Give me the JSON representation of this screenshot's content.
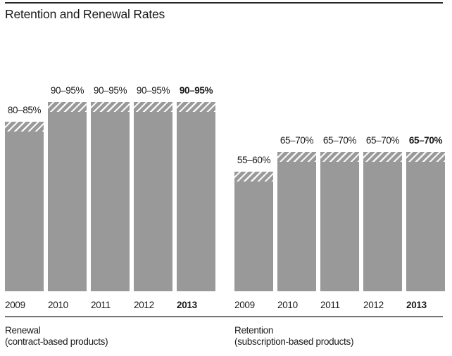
{
  "chart_data": {
    "type": "bar",
    "title": "Retention and Renewal Rates",
    "unit": "%",
    "ylim": [
      0,
      100
    ],
    "grid": false,
    "legend": "none",
    "colors": {
      "bar": "#999999",
      "hatch_stripe": "#f7f7f7",
      "text": "#1a1a1a",
      "top_rule": "#262626",
      "bottom_rule": "#757575"
    },
    "groups": [
      {
        "name": "Renewal",
        "subtitle": "(contract-based products)",
        "categories": [
          "2009",
          "2010",
          "2011",
          "2012",
          "2013"
        ],
        "bars": [
          {
            "year": "2009",
            "label": "80–85%",
            "low": 80,
            "high": 85,
            "emphasis": false
          },
          {
            "year": "2010",
            "label": "90–95%",
            "low": 90,
            "high": 95,
            "emphasis": false
          },
          {
            "year": "2011",
            "label": "90–95%",
            "low": 90,
            "high": 95,
            "emphasis": false
          },
          {
            "year": "2012",
            "label": "90–95%",
            "low": 90,
            "high": 95,
            "emphasis": false
          },
          {
            "year": "2013",
            "label": "90–95%",
            "low": 90,
            "high": 95,
            "emphasis": true
          }
        ]
      },
      {
        "name": "Retention",
        "subtitle": "(subscription-based products)",
        "categories": [
          "2009",
          "2010",
          "2011",
          "2012",
          "2013"
        ],
        "bars": [
          {
            "year": "2009",
            "label": "55–60%",
            "low": 55,
            "high": 60,
            "emphasis": false
          },
          {
            "year": "2010",
            "label": "65–70%",
            "low": 65,
            "high": 70,
            "emphasis": false
          },
          {
            "year": "2011",
            "label": "65–70%",
            "low": 65,
            "high": 70,
            "emphasis": false
          },
          {
            "year": "2012",
            "label": "65–70%",
            "low": 65,
            "high": 70,
            "emphasis": false
          },
          {
            "year": "2013",
            "label": "65–70%",
            "low": 65,
            "high": 70,
            "emphasis": true
          }
        ]
      }
    ]
  }
}
